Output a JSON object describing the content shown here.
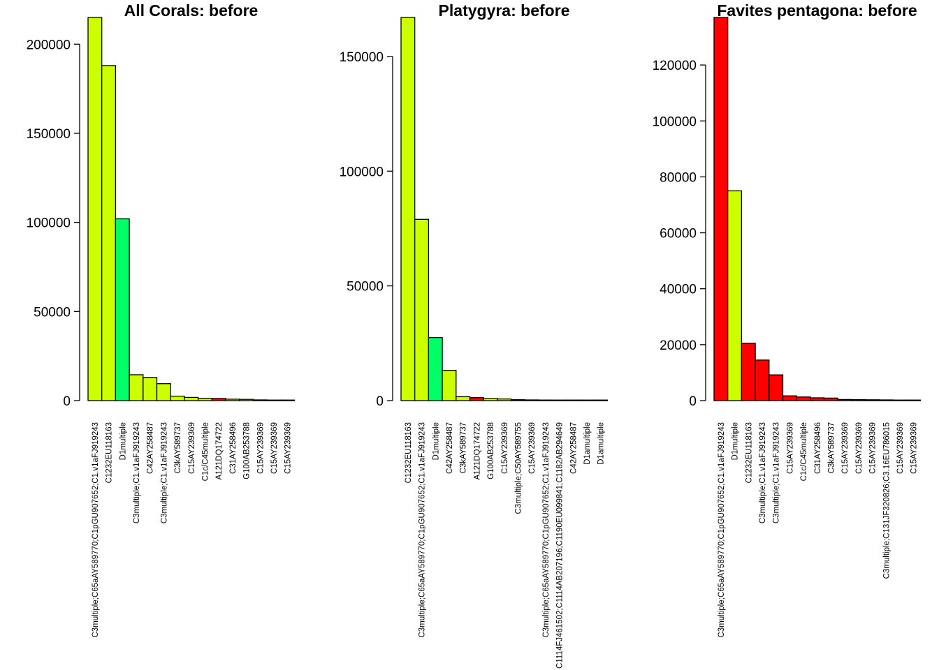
{
  "colors": {
    "yellow_green": "#CCFF00",
    "green": "#00FF66",
    "red": "#FF0000"
  },
  "chart_data": [
    {
      "type": "bar",
      "title": "All Corals: before",
      "xlabel": "",
      "ylabel": "",
      "ylim": [
        0,
        215000
      ],
      "yticks": [
        0,
        50000,
        100000,
        150000,
        200000
      ],
      "yticklabels": [
        "0",
        "50000",
        "100000",
        "150000",
        "200000"
      ],
      "categories": [
        "C3multiple;C65aAY589770;C1pGU907652;C1.v1aFJ919243",
        "C1232EU118163",
        "D1multiple",
        "C3multiple;C1.v1aFJ919243",
        "C42AY258487",
        "C3multiple;C1.v1aFJ919243",
        "C3kAY589737",
        "C15AY239369",
        "C1c/C45multiple",
        "A121DQ174722",
        "C31AY258496",
        "G100AB253788",
        "C15AY239369",
        "C15AY239369",
        "C15AY239369"
      ],
      "values": [
        215000,
        188000,
        102000,
        14500,
        13000,
        9500,
        2500,
        1800,
        1300,
        1200,
        800,
        700,
        400,
        300,
        250
      ],
      "colors": [
        "#CCFF00",
        "#CCFF00",
        "#00FF66",
        "#CCFF00",
        "#CCFF00",
        "#CCFF00",
        "#CCFF00",
        "#CCFF00",
        "#CCFF00",
        "#FF0000",
        "#CCFF00",
        "#CCFF00",
        "#CCFF00",
        "#CCFF00",
        "#CCFF00"
      ],
      "grid": false,
      "legend": "none"
    },
    {
      "type": "bar",
      "title": "Platygyra: before",
      "xlabel": "",
      "ylabel": "",
      "ylim": [
        0,
        167000
      ],
      "yticks": [
        0,
        50000,
        100000,
        150000
      ],
      "yticklabels": [
        "0",
        "50000",
        "100000",
        "150000"
      ],
      "categories": [
        "C1232EU118163",
        "C3multiple;C65aAY589770;C1pGU907652;C1.v1aFJ919243",
        "D1multiple",
        "C42AY258487",
        "C3kAY589737",
        "A121DQ174722",
        "G100AB253788",
        "C15AY239369",
        "C3multiple;C50AY589755",
        "C15AY239369",
        "C3multiple;C65aAY589770;C1pGU907652;C1.v1aFJ919243",
        "C1114FJ461502;C1114AB207196;C1190EU099841;C1182AB294649",
        "C42AY258487",
        "D1amultiple",
        "D1amultiple"
      ],
      "values": [
        167000,
        79000,
        27500,
        13200,
        1700,
        1300,
        900,
        700,
        400,
        300,
        250,
        200,
        150,
        100,
        100
      ],
      "colors": [
        "#CCFF00",
        "#CCFF00",
        "#00FF66",
        "#CCFF00",
        "#CCFF00",
        "#FF0000",
        "#CCFF00",
        "#CCFF00",
        "#CCFF00",
        "#CCFF00",
        "#CCFF00",
        "#CCFF00",
        "#CCFF00",
        "#00FF66",
        "#00FF66"
      ],
      "grid": false,
      "legend": "none"
    },
    {
      "type": "bar",
      "title": "Favites pentagona: before",
      "xlabel": "",
      "ylabel": "",
      "ylim": [
        0,
        137000
      ],
      "yticks": [
        0,
        20000,
        40000,
        60000,
        80000,
        100000,
        120000
      ],
      "yticklabels": [
        "0",
        "20000",
        "40000",
        "60000",
        "80000",
        "100000",
        "120000"
      ],
      "categories": [
        "C3multiple;C65aAY589770;C1pGU907652;C1.v1aFJ919243",
        "D1multiple",
        "C1232EU118163",
        "C3multiple;C1.v1aFJ919243",
        "C3multiple;C1.v1aFJ919243",
        "C15AY239369",
        "C1c/C45multiple",
        "C31AY258496",
        "C3kAY589737",
        "C15AY239369",
        "C15AY239369",
        "C15AY239369",
        "C3multiple;C131JF320826;C3.16EU786015",
        "C15AY239369",
        "C15AY239369"
      ],
      "values": [
        137000,
        75000,
        20500,
        14500,
        9200,
        1700,
        1300,
        1000,
        900,
        400,
        350,
        300,
        250,
        150,
        100
      ],
      "colors": [
        "#FF0000",
        "#CCFF00",
        "#FF0000",
        "#FF0000",
        "#FF0000",
        "#FF0000",
        "#FF0000",
        "#FF0000",
        "#FF0000",
        "#FF0000",
        "#FF0000",
        "#FF0000",
        "#FF0000",
        "#FF0000",
        "#FF0000"
      ],
      "grid": false,
      "legend": "none"
    }
  ]
}
